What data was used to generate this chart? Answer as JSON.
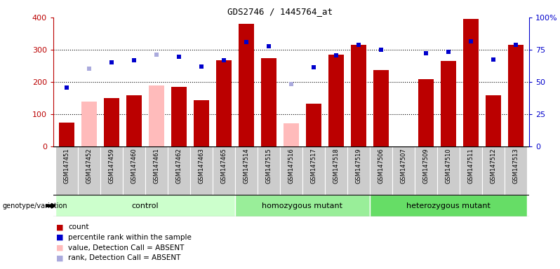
{
  "title": "GDS2746 / 1445764_at",
  "samples": [
    "GSM147451",
    "GSM147452",
    "GSM147459",
    "GSM147460",
    "GSM147461",
    "GSM147462",
    "GSM147463",
    "GSM147465",
    "GSM147514",
    "GSM147515",
    "GSM147516",
    "GSM147517",
    "GSM147518",
    "GSM147519",
    "GSM147506",
    "GSM147507",
    "GSM147509",
    "GSM147510",
    "GSM147511",
    "GSM147512",
    "GSM147513"
  ],
  "groups": [
    {
      "label": "control",
      "start": 0,
      "end": 8,
      "color": "#ccffcc"
    },
    {
      "label": "homozygous mutant",
      "start": 8,
      "end": 14,
      "color": "#99ee99"
    },
    {
      "label": "heterozygous mutant",
      "start": 14,
      "end": 21,
      "color": "#66dd66"
    }
  ],
  "count_values": [
    75,
    null,
    150,
    160,
    null,
    185,
    143,
    268,
    380,
    275,
    null,
    133,
    284,
    316,
    238,
    null,
    210,
    265,
    395,
    158,
    316
  ],
  "count_absent": [
    null,
    140,
    null,
    null,
    190,
    null,
    null,
    null,
    null,
    null,
    72,
    null,
    null,
    null,
    null,
    null,
    null,
    null,
    null,
    null,
    null
  ],
  "rank_values": [
    183,
    null,
    261,
    268,
    null,
    278,
    249,
    268,
    325,
    310,
    null,
    245,
    283,
    315,
    300,
    null,
    290,
    293,
    327,
    270,
    315
  ],
  "rank_absent": [
    null,
    242,
    null,
    null,
    284,
    null,
    null,
    null,
    null,
    null,
    193,
    null,
    null,
    null,
    null,
    null,
    null,
    null,
    null,
    null,
    null
  ],
  "bar_color": "#bb0000",
  "bar_absent_color": "#ffbbbb",
  "dot_color": "#0000cc",
  "dot_absent_color": "#aaaadd",
  "bg_color": "#cccccc",
  "ylim_left": [
    0,
    400
  ],
  "ylim_right": [
    0,
    100
  ],
  "yticks_left": [
    0,
    100,
    200,
    300,
    400
  ],
  "yticks_right": [
    0,
    25,
    50,
    75,
    100
  ],
  "ytick_labels_right": [
    "0",
    "25",
    "50",
    "75",
    "100%"
  ]
}
